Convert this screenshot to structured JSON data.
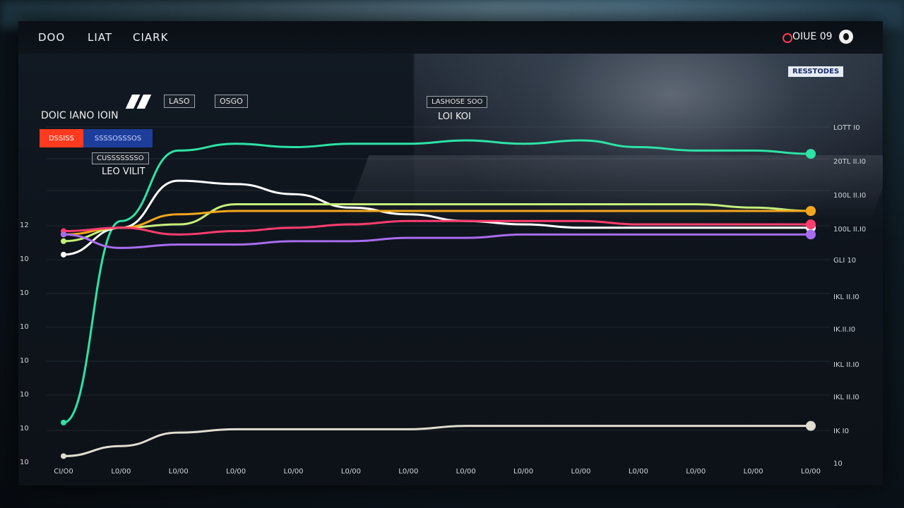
{
  "nav": {
    "item1": "DOO",
    "item2": "LIAT",
    "item3": "CIARK",
    "status": "OIUE 09"
  },
  "badges": {
    "top_right": "RESSTODES",
    "chip1": "LASO",
    "chip2": "OSGO",
    "center_chip": "LASHOSE SOO",
    "left_chip": "CUSSSSSSSO"
  },
  "labels": {
    "left_title": "DOIC IANO IOIN",
    "legend_red": "DSSISS",
    "legend_blue": "SSSSOSSSOS",
    "sub_label": "LEO VILIT",
    "center_label": "LOI KOI"
  },
  "chart_data": {
    "type": "line",
    "x": [
      0,
      1,
      2,
      3,
      4,
      5,
      6,
      7,
      8,
      9,
      10,
      11,
      12,
      13
    ],
    "x_tick_labels": [
      "CI/O0",
      "L0/00",
      "L0/00",
      "L0/00",
      "L0/00",
      "L0/00",
      "L0/00",
      "L0/00",
      "L0/00",
      "L0/00",
      "L0/00",
      "L0/00",
      "L0/00",
      "L0/00"
    ],
    "y_tick_labels_left": [
      "12",
      "10",
      "10",
      "10",
      "10",
      "10",
      "10",
      "10"
    ],
    "y_tick_labels_right": [
      "LOTT I0",
      "20TL II.I0",
      "100L II.I0",
      "100L II.I0",
      "GLI 10",
      "IKL II.I0",
      "IK.II.I0",
      "IKL II.I0",
      "IKL II.I0",
      "IK  I0",
      "10"
    ],
    "ylim": [
      0,
      100
    ],
    "grid": true,
    "series": [
      {
        "color": "#2de3a6",
        "values": [
          12,
          72,
          93,
          95,
          94,
          95,
          95,
          96,
          95,
          96,
          94,
          93,
          93,
          92
        ]
      },
      {
        "color": "#ffffff",
        "values": [
          62,
          70,
          84,
          83,
          80,
          76,
          74,
          72,
          71,
          70,
          70,
          70,
          70,
          70
        ]
      },
      {
        "color": "#c5f07a",
        "values": [
          66,
          70,
          71,
          77,
          77,
          77,
          77,
          77,
          77,
          77,
          77,
          77,
          76,
          75
        ]
      },
      {
        "color": "#f4a61c",
        "values": [
          68,
          70,
          74,
          75,
          75,
          75,
          75,
          75,
          75,
          75,
          75,
          75,
          75,
          75
        ]
      },
      {
        "color": "#ff3d6e",
        "values": [
          69,
          70,
          68,
          69,
          70,
          71,
          72,
          72,
          72,
          72,
          71,
          71,
          71,
          71
        ]
      },
      {
        "color": "#a86cf0",
        "values": [
          68,
          64,
          65,
          65,
          66,
          66,
          67,
          67,
          68,
          68,
          68,
          68,
          68,
          68
        ]
      },
      {
        "color": "#e1ddd0",
        "values": [
          2,
          5,
          9,
          10,
          10,
          10,
          10,
          11,
          11,
          11,
          11,
          11,
          11,
          11
        ]
      }
    ]
  }
}
